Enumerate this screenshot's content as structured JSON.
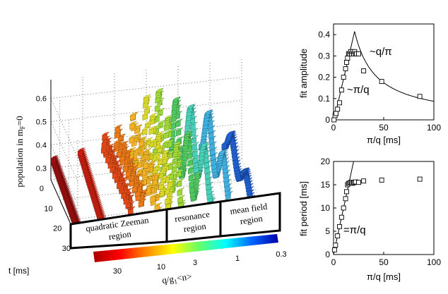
{
  "chart_data": [
    {
      "type": "scatter",
      "subtype": "3d-waterfall",
      "zlabel": "population in m",
      "zlabel_sub": "F",
      "zlabel_suffix": "=0",
      "zticks": [
        "0.6",
        "0.5",
        "0.4",
        "0.3"
      ],
      "tlabel": "t [ms]",
      "tticks": [
        "0",
        "10",
        "20",
        "30"
      ],
      "qlabel": "q/g",
      "qlabel_sub": "1",
      "qlabel_suffix": "<n>",
      "qticks": [
        "30",
        "10",
        "3",
        "1",
        "0.3"
      ],
      "regions": [
        {
          "line1": "quadratic Zeeman",
          "line2": "region"
        },
        {
          "line1": "resonance",
          "line2": "region"
        },
        {
          "line1": "mean field",
          "line2": "region"
        }
      ],
      "colorbar": [
        "#aa0000",
        "#ff0000",
        "#ff8800",
        "#ffff00",
        "#66ff66",
        "#00ffff",
        "#0066ff",
        "#0000aa"
      ],
      "traces": [
        {
          "q": 40,
          "t_end": 30,
          "color": "#9a1010",
          "base": 0.34,
          "amp": 0.0,
          "period_ms": 1,
          "flat": true
        },
        {
          "q": 20,
          "t_end": 30,
          "color": "#c82010",
          "base": 0.36,
          "amp": 0.0,
          "period_ms": 1,
          "flat": true
        },
        {
          "q": 11,
          "t_end": 30,
          "color": "#e04818",
          "base": 0.395,
          "amp": 0.035,
          "period_ms": 2.5
        },
        {
          "q": 8,
          "t_end": 30,
          "color": "#ee7a18",
          "base": 0.41,
          "amp": 0.05,
          "period_ms": 3.5
        },
        {
          "q": 5.5,
          "t_end": 30,
          "color": "#f7b224",
          "base": 0.42,
          "amp": 0.1,
          "period_ms": 5
        },
        {
          "q": 4,
          "t_end": 30,
          "color": "#d8d82a",
          "base": 0.45,
          "amp": 0.15,
          "period_ms": 7
        },
        {
          "q": 3,
          "t_end": 30,
          "color": "#9ed838",
          "base": 0.47,
          "amp": 0.17,
          "period_ms": 10
        },
        {
          "q": 2,
          "t_end": 30,
          "color": "#50c860",
          "base": 0.46,
          "amp": 0.15,
          "period_ms": 13
        },
        {
          "q": 1.4,
          "t_end": 30,
          "color": "#48d0b8",
          "base": 0.45,
          "amp": 0.13,
          "period_ms": 15
        },
        {
          "q": 0.9,
          "t_end": 30,
          "color": "#40b0e0",
          "base": 0.44,
          "amp": 0.11,
          "period_ms": 16
        },
        {
          "q": 0.5,
          "t_end": 30,
          "color": "#2060d0",
          "base": 0.38,
          "amp": 0.06,
          "period_ms": 16
        }
      ]
    },
    {
      "type": "scatter",
      "xlabel": "π/q [ms]",
      "ylabel": "fit amplitude",
      "xlim": [
        0,
        100
      ],
      "ylim": [
        0,
        0.45
      ],
      "xticks": [
        "0",
        "50",
        "100"
      ],
      "yticks": [
        "0",
        "0.1",
        "0.2",
        "0.3",
        "0.4"
      ],
      "x": [
        0.5,
        1.5,
        2.5,
        4,
        6,
        8,
        10,
        12,
        13,
        14,
        15,
        16,
        17,
        18,
        19,
        20,
        21,
        22,
        23,
        25,
        30,
        48,
        86
      ],
      "y": [
        0.0,
        0.02,
        0.03,
        0.05,
        0.08,
        0.14,
        0.2,
        0.24,
        0.27,
        0.29,
        0.31,
        0.31,
        0.32,
        0.31,
        0.32,
        0.31,
        0.32,
        0.31,
        0.31,
        0.31,
        0.23,
        0.18,
        0.11
      ],
      "fit_peak_x": 21,
      "fit_label_rising": "~π/q",
      "fit_label_falling": "~q/π"
    },
    {
      "type": "scatter",
      "xlabel": "π/q [ms]",
      "ylabel": "fit period [ms]",
      "xlim": [
        0,
        100
      ],
      "ylim": [
        0,
        20
      ],
      "xticks": [
        "0",
        "50",
        "100"
      ],
      "yticks": [
        "0",
        "5",
        "10",
        "15",
        "20"
      ],
      "x": [
        1,
        2,
        4,
        6,
        8,
        10,
        12,
        13,
        14,
        15,
        16,
        17,
        18,
        19,
        20,
        21,
        22,
        25,
        30,
        48,
        86
      ],
      "y": [
        1,
        2,
        4,
        6,
        8,
        10,
        12,
        13.5,
        15,
        15.3,
        15.3,
        15.5,
        15.5,
        15.3,
        15.5,
        15.5,
        15.6,
        15.5,
        15.8,
        16,
        16.2
      ],
      "fit_label": "=π/q"
    }
  ]
}
